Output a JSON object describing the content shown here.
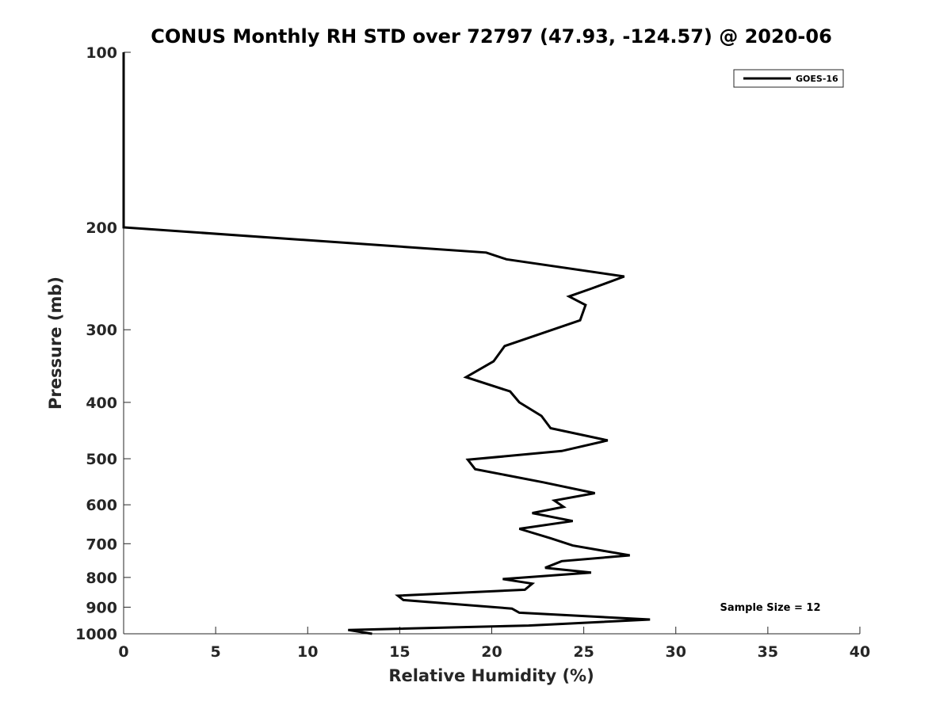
{
  "chart_data": {
    "type": "line",
    "title": "CONUS Monthly RH STD over 72797 (47.93, -124.57) @ 2020-06",
    "xlabel": "Relative Humidity (%)",
    "ylabel": "Pressure (mb)",
    "xlim": [
      0,
      40
    ],
    "ylim": [
      100,
      1000
    ],
    "y_scale": "log",
    "y_reversed": true,
    "grid": false,
    "legend_position": "top-right",
    "x_ticks": [
      0,
      5,
      10,
      15,
      20,
      25,
      30,
      35,
      40
    ],
    "y_ticks": [
      100,
      200,
      300,
      400,
      500,
      600,
      700,
      800,
      900,
      1000
    ],
    "annotation": "Sample Size = 12",
    "series": [
      {
        "name": "GOES-16",
        "color": "#000000",
        "x": [
          0,
          0,
          0,
          0,
          0,
          19.7,
          20.8,
          27.2,
          25.4,
          24.2,
          25.1,
          24.8,
          20.7,
          20.1,
          18.6,
          21.0,
          21.5,
          22.7,
          23.2,
          26.3,
          23.8,
          18.7,
          19.1,
          22.8,
          25.6,
          23.4,
          23.9,
          22.2,
          24.4,
          21.5,
          23.2,
          24.4,
          27.5,
          23.8,
          22.9,
          25.4,
          20.6,
          22.2,
          21.8,
          14.9,
          15.2,
          21.1,
          21.5,
          28.6,
          22.0,
          12.2,
          13.5
        ],
        "y": [
          100,
          120,
          150,
          180,
          200,
          221,
          227,
          243,
          255,
          263,
          272,
          289,
          320,
          340,
          362,
          383,
          400,
          422,
          443,
          465,
          485,
          502,
          521,
          549,
          573,
          590,
          605,
          620,
          640,
          660,
          685,
          705,
          733,
          750,
          770,
          785,
          805,
          820,
          840,
          860,
          875,
          905,
          920,
          945,
          968,
          985,
          1000
        ]
      }
    ]
  }
}
